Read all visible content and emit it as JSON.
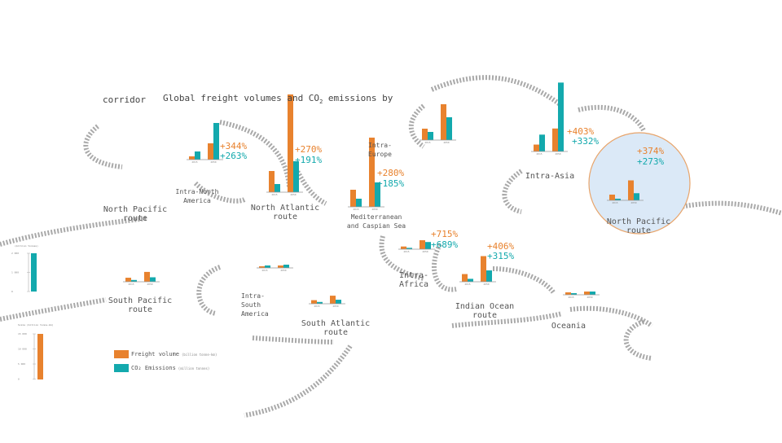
{
  "page": {
    "title": "Global freight volumes and CO",
    "title_sub": "2",
    "title_end": " emissions by",
    "title_line2": "corridor"
  },
  "colors": {
    "freight": "#e8822e",
    "co2": "#13a9ad",
    "arrow": "#9a9a9a",
    "highlight_ring": "#e8a46a",
    "highlight_fill": "#dbe9f7"
  },
  "legend": {
    "freight": "Freight volume",
    "co2": "CO₂ Emissions",
    "freight_unit": "(billion tonne-km)",
    "co2_unit": "(million tonnes)"
  },
  "scale_small": {
    "title": "(million tonnes)",
    "ticks": [
      "2 000",
      "1 000",
      "0"
    ]
  },
  "scale_large": {
    "title": "Scale (billion tonne-km)",
    "ticks": [
      "15 000",
      "10 000",
      "5 000",
      "0"
    ]
  },
  "regions": [
    {
      "name": "Intra-North\nAmerica"
    },
    {
      "name": "North Pacific\nroute"
    },
    {
      "name": "North Atlantic\nroute"
    },
    {
      "name": "Intra-\nEurope"
    },
    {
      "name": "Mediterranean\nand Caspian Sea"
    },
    {
      "name": "Intra-Asia"
    },
    {
      "name": "North Pacific\nroute"
    },
    {
      "name": "South Pacific\nroute"
    },
    {
      "name": "Intra-\nSouth\nAmerica"
    },
    {
      "name": "South Atlantic\nroute"
    },
    {
      "name": "Intra-\nAfrica"
    },
    {
      "name": "Indian Ocean\nroute"
    },
    {
      "name": "Oceania"
    }
  ],
  "chart_data": {
    "type": "bar",
    "title": "Global freight volumes and CO2 emissions by corridor",
    "years": [
      "2015",
      "2050"
    ],
    "series_names": [
      "Freight volume",
      "CO2 Emissions"
    ],
    "groups": [
      {
        "corridor": "Intra-North America",
        "freight": [
          4,
          20
        ],
        "co2": [
          10,
          45
        ],
        "freight_change": "+344%",
        "co2_change": "+263%"
      },
      {
        "corridor": "North Atlantic route",
        "freight": [
          26,
          120
        ],
        "co2": [
          10,
          38
        ],
        "freight_change": "+270%",
        "co2_change": "+191%"
      },
      {
        "corridor": "Intra-Europe",
        "freight": [
          14,
          44
        ],
        "co2": [
          10,
          28
        ],
        "freight_change": "",
        "co2_change": ""
      },
      {
        "corridor": "Mediterranean and Caspian Sea",
        "freight": [
          21,
          85
        ],
        "co2": [
          10,
          30
        ],
        "freight_change": "+280%",
        "co2_change": "+185%"
      },
      {
        "corridor": "Intra-Asia",
        "freight": [
          18,
          60
        ],
        "co2": [
          44,
          180
        ],
        "freight_change": "+403%",
        "co2_change": "+332%"
      },
      {
        "corridor": "North Pacific route",
        "freight": [
          28,
          98
        ],
        "co2": [
          8,
          35
        ],
        "freight_change": "+374%",
        "co2_change": "+273%"
      },
      {
        "corridor": "South Pacific route",
        "freight": [
          9,
          22
        ],
        "co2": [
          4,
          10
        ],
        "freight_change": "",
        "co2_change": ""
      },
      {
        "corridor": "Intra-South America",
        "freight": [
          2,
          3
        ],
        "co2": [
          3,
          4
        ],
        "freight_change": "",
        "co2_change": ""
      },
      {
        "corridor": "South Atlantic route",
        "freight": [
          8,
          18
        ],
        "co2": [
          4,
          9
        ],
        "freight_change": "",
        "co2_change": ""
      },
      {
        "corridor": "Intra-Africa",
        "freight": [
          6,
          20
        ],
        "co2": [
          3,
          16
        ],
        "freight_change": "+715%",
        "co2_change": "+689%"
      },
      {
        "corridor": "Indian Ocean route",
        "freight": [
          21,
          70
        ],
        "co2": [
          8,
          31
        ],
        "freight_change": "+406%",
        "co2_change": "+315%"
      },
      {
        "corridor": "Oceania",
        "freight": [
          3,
          4
        ],
        "co2": [
          2,
          4
        ],
        "freight_change": "",
        "co2_change": ""
      }
    ]
  }
}
